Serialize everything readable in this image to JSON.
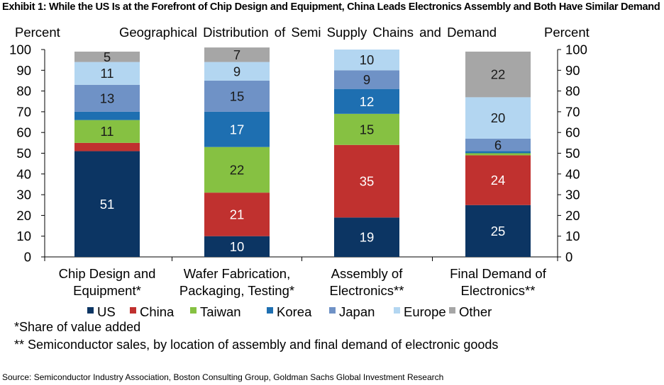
{
  "exhibit_title": "Exhibit 1: While the US Is at the Forefront of Chip Design and Equipment, China Leads Electronics Assembly and Both Have Similar Demand",
  "notes": [
    "*Share of value added",
    "** Semiconductor sales, by location of assembly and final demand of electronic goods"
  ],
  "source": "Source: Semiconductor Industry Association, Boston Consulting Group, Goldman Sachs Global Investment Research",
  "colors": {
    "US": "#0c3563",
    "China": "#c0312f",
    "Taiwan": "#86c142",
    "Korea": "#1e6fb1",
    "Japan": "#6f92c6",
    "Europe": "#b3d6f1",
    "Other": "#a6a6a6"
  },
  "chart_data": {
    "type": "bar",
    "stacked": true,
    "title": "Geographical Distribution of Semi Supply Chains and Demand",
    "ylabel_left": "Percent",
    "ylabel_right": "Percent",
    "ylim": [
      0,
      100
    ],
    "yticks": [
      0,
      10,
      20,
      30,
      40,
      50,
      60,
      70,
      80,
      90,
      100
    ],
    "grid": false,
    "legend_position": "bottom",
    "categories": [
      [
        "Chip Design and",
        "Equipment*"
      ],
      [
        "Wafer Fabrication,",
        "Packaging, Testing*"
      ],
      [
        "Assembly of",
        "Electronics**"
      ],
      [
        "Final Demand of",
        "Electronics**"
      ]
    ],
    "series": [
      {
        "name": "US",
        "values": [
          51,
          10,
          19,
          25
        ]
      },
      {
        "name": "China",
        "values": [
          4,
          21,
          35,
          24
        ]
      },
      {
        "name": "Taiwan",
        "values": [
          11,
          22,
          15,
          1
        ]
      },
      {
        "name": "Korea",
        "values": [
          4,
          17,
          12,
          1
        ]
      },
      {
        "name": "Japan",
        "values": [
          13,
          15,
          9,
          6
        ]
      },
      {
        "name": "Europe",
        "values": [
          11,
          9,
          10,
          20
        ]
      },
      {
        "name": "Other",
        "values": [
          5,
          7,
          0,
          22
        ]
      }
    ],
    "data_labels": {
      "US": [
        "51",
        "10",
        "19",
        "25"
      ],
      "China": [
        "",
        "21",
        "35",
        "24"
      ],
      "Taiwan": [
        "11",
        "22",
        "15",
        ""
      ],
      "Korea": [
        "",
        "17",
        "12",
        ""
      ],
      "Japan": [
        "13",
        "15",
        "9",
        "6"
      ],
      "Europe": [
        "11",
        "9",
        "10",
        "20"
      ],
      "Other": [
        "5",
        "7",
        "",
        "22"
      ]
    }
  }
}
